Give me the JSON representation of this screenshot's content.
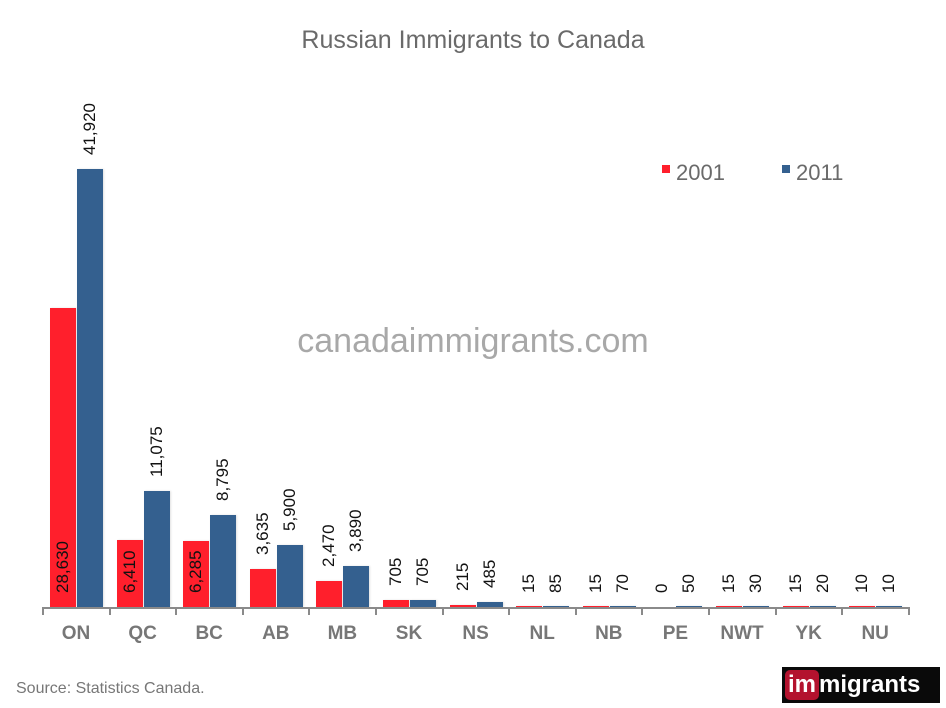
{
  "chart_data": {
    "type": "bar",
    "title": "Russian Immigrants to Canada",
    "xlabel": "",
    "ylabel": "",
    "categories": [
      "ON",
      "QC",
      "BC",
      "AB",
      "MB",
      "SK",
      "NS",
      "NL",
      "NB",
      "PE",
      "NWT",
      "YK",
      "NU"
    ],
    "series": [
      {
        "name": "2001",
        "color": "#ff1f2c",
        "values": [
          28630,
          6410,
          6285,
          3635,
          2470,
          705,
          215,
          15,
          15,
          0,
          15,
          15,
          10
        ],
        "labels": [
          "28,630",
          "6,410",
          "6,285",
          "3,635",
          "2,470",
          "705",
          "215",
          "15",
          "15",
          "0",
          "15",
          "15",
          "10"
        ]
      },
      {
        "name": "2011",
        "color": "#34608f",
        "values": [
          41920,
          11075,
          8795,
          5900,
          3890,
          705,
          485,
          85,
          70,
          50,
          30,
          20,
          10
        ],
        "labels": [
          "41,920",
          "11,075",
          "8,795",
          "5,900",
          "3,890",
          "705",
          "485",
          "85",
          "70",
          "50",
          "30",
          "20",
          "10"
        ]
      }
    ],
    "ylim": [
      0,
      42000
    ],
    "grid": false,
    "legend_position": "top-right",
    "data_labels": "rotated vertical",
    "watermark": "canadaimmigrants.com",
    "source": "Source: Statistics Canada."
  },
  "title": "Russian Immigrants to Canada",
  "watermark": "canadaimmigrants.com",
  "legend": [
    {
      "label": "2001",
      "color": "#ff1f2c"
    },
    {
      "label": "2011",
      "color": "#34608f"
    }
  ],
  "source": "Source: Statistics Canada.",
  "logo": {
    "part1": "im",
    "part2": "migrants"
  }
}
